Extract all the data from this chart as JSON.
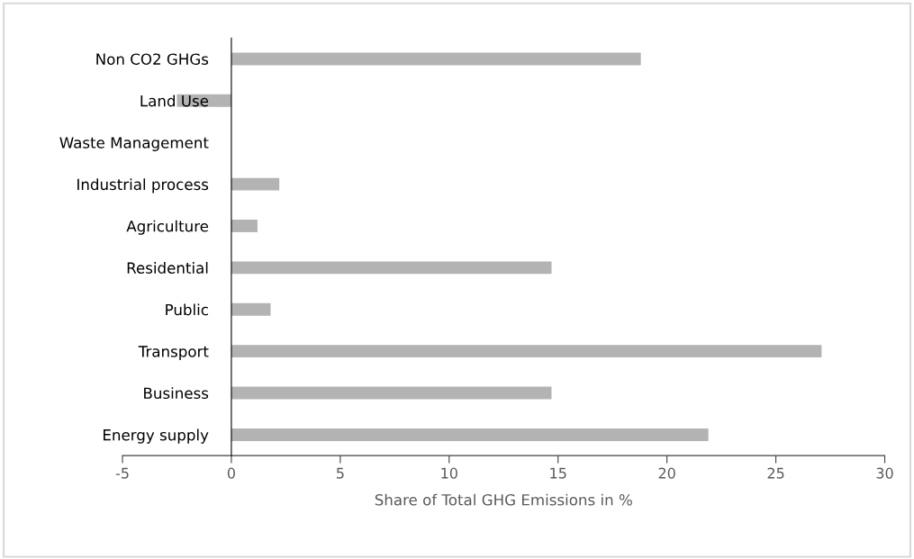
{
  "chart_data": {
    "type": "bar",
    "orientation": "horizontal",
    "xlabel": "Share of Total GHG Emissions in %",
    "categories": [
      "Non CO2 GHGs",
      "Land Use",
      "Waste Management",
      "Industrial process",
      "Agriculture",
      "Residential",
      "Public",
      "Transport",
      "Business",
      "Energy supply"
    ],
    "values": [
      18.8,
      -2.5,
      null,
      2.2,
      1.2,
      14.7,
      1.8,
      27.1,
      14.7,
      21.9
    ],
    "color": "#b3b3b3",
    "xlim": [
      -5,
      30
    ],
    "xticks": [
      -5,
      0,
      5,
      10,
      15,
      20,
      25,
      30
    ],
    "grid": false,
    "legend": false
  }
}
